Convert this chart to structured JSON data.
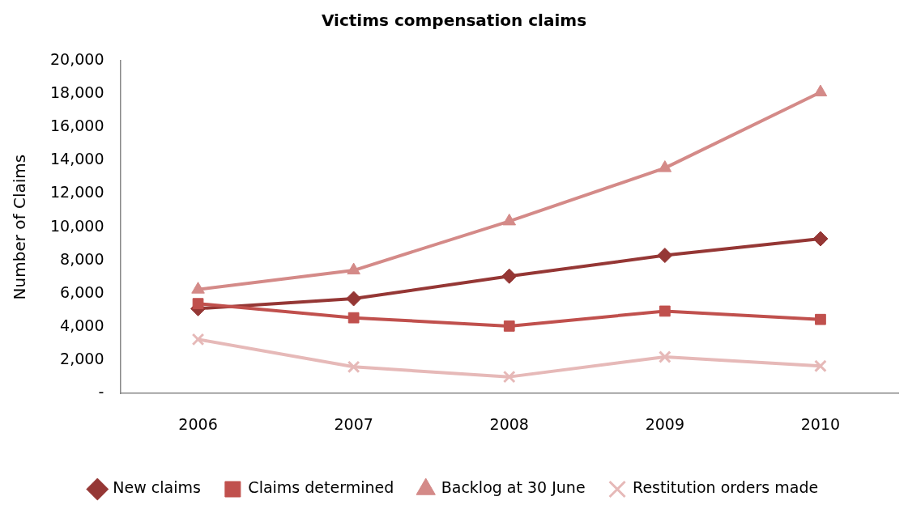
{
  "chart_data": {
    "type": "line",
    "title": "Victims compensation claims",
    "ylabel": "Number of Claims",
    "categories": [
      "2006",
      "2007",
      "2008",
      "2009",
      "2010"
    ],
    "series": [
      {
        "name": "New claims",
        "color": "#953735",
        "marker": "diamond",
        "values": [
          5100,
          5700,
          7050,
          8300,
          9300
        ]
      },
      {
        "name": "Claims determined",
        "color": "#c0504d",
        "marker": "square",
        "values": [
          5400,
          4550,
          4050,
          4950,
          4450
        ]
      },
      {
        "name": "Backlog at 30 June",
        "color": "#d48a88",
        "marker": "triangle",
        "values": [
          6250,
          7400,
          10350,
          13550,
          18100
        ]
      },
      {
        "name": "Restitution orders made",
        "color": "#e6b9b8",
        "marker": "cross",
        "values": [
          3250,
          1600,
          1000,
          2200,
          1650
        ]
      }
    ],
    "ylim": [
      0,
      20000
    ],
    "yticks": [
      {
        "value": 0,
        "label": "-"
      },
      {
        "value": 2000,
        "label": "2,000"
      },
      {
        "value": 4000,
        "label": "4,000"
      },
      {
        "value": 6000,
        "label": "6,000"
      },
      {
        "value": 8000,
        "label": "8,000"
      },
      {
        "value": 10000,
        "label": "10,000"
      },
      {
        "value": 12000,
        "label": "12,000"
      },
      {
        "value": 14000,
        "label": "14,000"
      },
      {
        "value": 16000,
        "label": "16,000"
      },
      {
        "value": 18000,
        "label": "18,000"
      },
      {
        "value": 20000,
        "label": "20,000"
      }
    ],
    "grid": false,
    "legend": "bottom",
    "line_style": "solid"
  }
}
